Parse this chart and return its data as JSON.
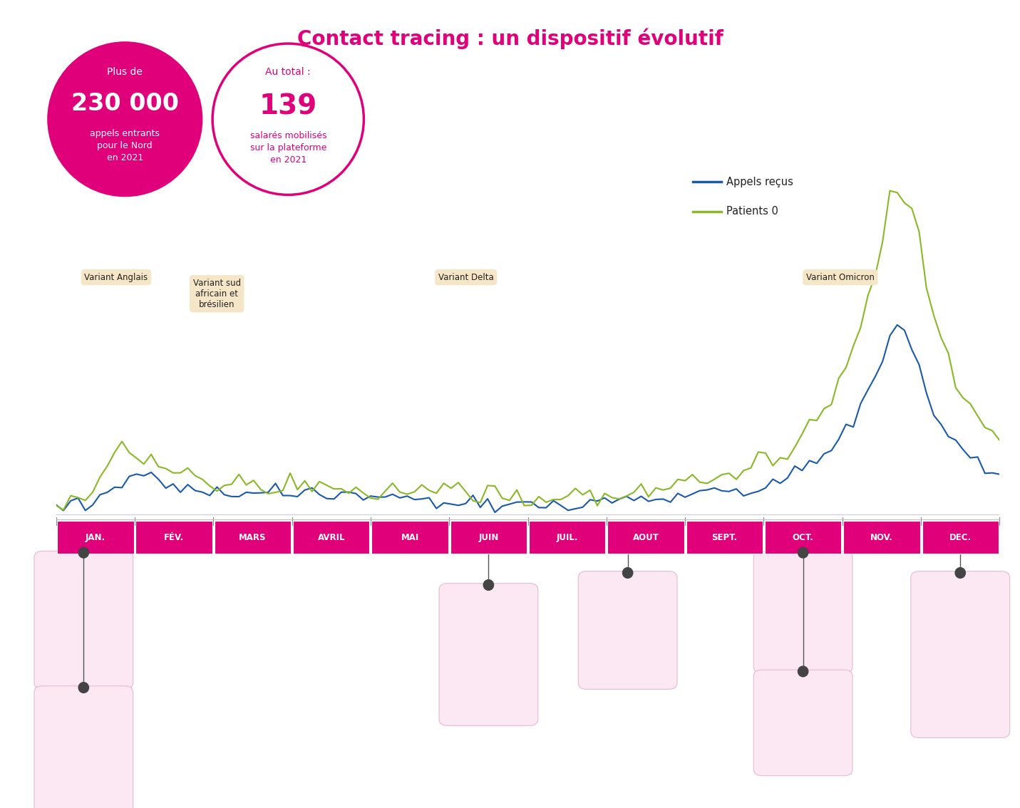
{
  "title": "Contact tracing : un dispositif évolutif",
  "title_color": "#e0007a",
  "title_fontsize": 20,
  "bg_color": "#ffffff",
  "circle1_color": "#e0007a",
  "circle1_text1": "Plus de",
  "circle1_text2": "230 000",
  "circle1_text3": "appels entrants\npour le Nord\nen 2021",
  "circle2_border": "#e0007a",
  "circle2_text1": "Au total :",
  "circle2_text2": "139",
  "circle2_text3": "salarés mobilisés\nsur la plateforme\nen 2021",
  "legend_line1_color": "#1a5aa8",
  "legend_line2_color": "#8ab827",
  "legend_text1": "Appels reçus",
  "legend_text2": "Patients 0",
  "months": [
    "JAN.",
    "FÉV.",
    "MARS",
    "AVRIL",
    "MAI",
    "JUIN",
    "JUIL.",
    "AOUT",
    "SEPT.",
    "OCT.",
    "NOV.",
    "DEC."
  ],
  "month_bg_color": "#e0007a",
  "month_text_color": "#ffffff",
  "variant_boxes": [
    {
      "text": "Variant Anglais",
      "xr": 0.03,
      "ya": 0.62
    },
    {
      "text": "Variant sud\nafricain et\nbrésilien",
      "xr": 0.145,
      "ya": 0.6
    },
    {
      "text": "Variant Delta",
      "xr": 0.405,
      "ya": 0.62
    },
    {
      "text": "Variant Omicron",
      "xr": 0.795,
      "ya": 0.62
    }
  ],
  "variant_bg": "#f5e6c8",
  "event_box_color": "#fce8f3",
  "event_box_border": "#e8b8d4",
  "appels": [
    18,
    20,
    22,
    26,
    30,
    35,
    42,
    52,
    60,
    68,
    74,
    80,
    84,
    80,
    72,
    67,
    63,
    59,
    56,
    53,
    51,
    49,
    47,
    45,
    44,
    43,
    43,
    43,
    43,
    44,
    45,
    46,
    47,
    48,
    47,
    46,
    45,
    44,
    43,
    42,
    41,
    40,
    39,
    38,
    37,
    36,
    35,
    34,
    33,
    32,
    31,
    30,
    29,
    29,
    28,
    27,
    27,
    26,
    25,
    24,
    23,
    22,
    21,
    21,
    20,
    19,
    19,
    20,
    21,
    22,
    23,
    25,
    26,
    27,
    28,
    29,
    30,
    32,
    33,
    34,
    35,
    36,
    37,
    38,
    40,
    41,
    43,
    45,
    47,
    49,
    51,
    53,
    55,
    57,
    59,
    62,
    65,
    69,
    73,
    78,
    84,
    92,
    100,
    110,
    122,
    135,
    150,
    168,
    188,
    210,
    238,
    270,
    308,
    350,
    390,
    420,
    400,
    360,
    310,
    268,
    228,
    195,
    168,
    148,
    133,
    120,
    110,
    103,
    98,
    98
  ],
  "patients": [
    25,
    28,
    33,
    40,
    50,
    62,
    78,
    95,
    110,
    122,
    130,
    136,
    138,
    128,
    115,
    106,
    99,
    93,
    88,
    83,
    79,
    76,
    73,
    70,
    67,
    65,
    63,
    62,
    61,
    61,
    61,
    62,
    63,
    65,
    63,
    62,
    60,
    59,
    58,
    57,
    55,
    54,
    53,
    52,
    50,
    49,
    48,
    47,
    46,
    46,
    48,
    50,
    52,
    54,
    52,
    50,
    48,
    46,
    44,
    42,
    40,
    38,
    36,
    35,
    34,
    32,
    31,
    32,
    33,
    35,
    37,
    39,
    42,
    45,
    46,
    47,
    48,
    50,
    52,
    53,
    55,
    56,
    58,
    60,
    62,
    64,
    67,
    70,
    73,
    77,
    80,
    84,
    88,
    91,
    95,
    99,
    104,
    110,
    118,
    128,
    140,
    155,
    172,
    192,
    215,
    240,
    268,
    300,
    335,
    375,
    420,
    480,
    545,
    615,
    680,
    720,
    695,
    645,
    580,
    510,
    440,
    382,
    330,
    290,
    258,
    232,
    210,
    195,
    185,
    180
  ]
}
